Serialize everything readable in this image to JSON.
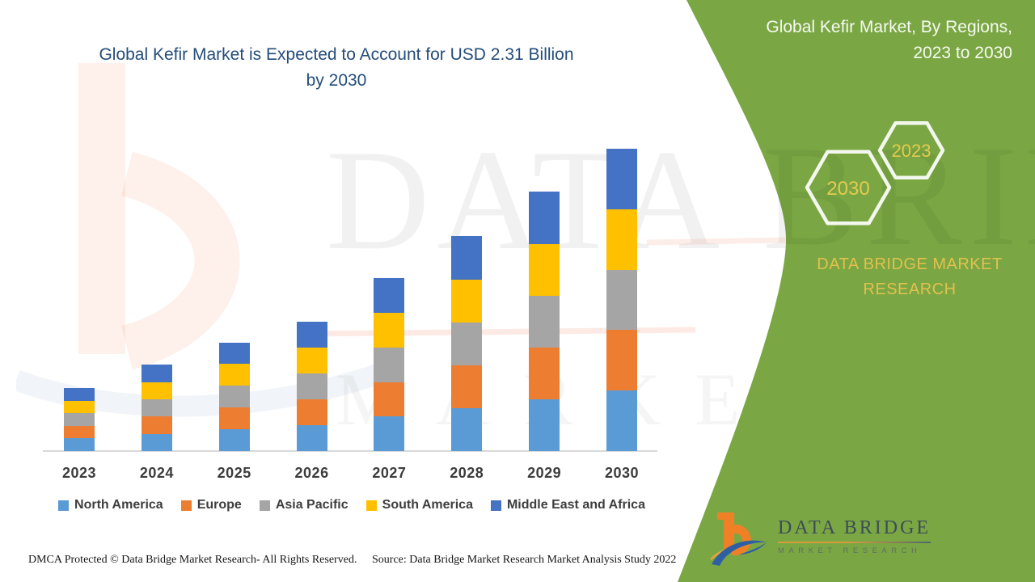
{
  "title": {
    "line1": "Global Kefir Market is Expected to Account for USD 2.31 Billion",
    "line2": "by 2030"
  },
  "panel": {
    "heading_line1": "Global Kefir Market, By Regions,",
    "heading_line2": "2023 to 2030",
    "hex_badge_small": "2023",
    "hex_badge_large": "2030",
    "brand_line1": "DATA BRIDGE MARKET",
    "brand_line2": "RESEARCH",
    "green_color": "#7aa743",
    "accent_yellow": "#e5cb4f"
  },
  "logo": {
    "name_text": "DATA BRIDGE",
    "sub_text": "MARKET RESEARCH",
    "orange": "#f08026",
    "blue": "#2e5fa3"
  },
  "watermark": {
    "row1": "DATA BRIDGE",
    "row2": "MARKET RESEARCH"
  },
  "footer": {
    "left": "DMCA Protected © Data Bridge Market Research- All Rights Reserved.",
    "right": "Source: Data Bridge Market Research Market Analysis Study 2022"
  },
  "chart_data": {
    "type": "bar",
    "stacked": true,
    "title": "Global Kefir Market is Expected to Account for USD 2.31 Billion by 2030",
    "unit": "USD Billion",
    "categories": [
      "2023",
      "2024",
      "2025",
      "2026",
      "2027",
      "2028",
      "2029",
      "2030"
    ],
    "series": [
      {
        "name": "North America",
        "color": "#5B9BD5",
        "values": [
          0.096,
          0.132,
          0.166,
          0.198,
          0.264,
          0.328,
          0.396,
          0.462
        ]
      },
      {
        "name": "Europe",
        "color": "#ED7D31",
        "values": [
          0.096,
          0.132,
          0.166,
          0.198,
          0.264,
          0.328,
          0.396,
          0.462
        ]
      },
      {
        "name": "Asia Pacific",
        "color": "#A5A5A5",
        "values": [
          0.096,
          0.132,
          0.166,
          0.198,
          0.264,
          0.328,
          0.396,
          0.462
        ]
      },
      {
        "name": "South America",
        "color": "#FFC000",
        "values": [
          0.096,
          0.132,
          0.166,
          0.198,
          0.264,
          0.328,
          0.396,
          0.462
        ]
      },
      {
        "name": "Middle East and Africa",
        "color": "#4472C4",
        "values": [
          0.096,
          0.132,
          0.166,
          0.198,
          0.264,
          0.328,
          0.396,
          0.462
        ]
      }
    ],
    "totals": [
      0.48,
      0.66,
      0.83,
      0.99,
      1.32,
      1.64,
      1.98,
      2.31
    ],
    "xlabel": "",
    "ylabel": "",
    "ylim": [
      0,
      2.31
    ],
    "gridlines": false,
    "y_axis_visible": false,
    "legend_position": "bottom"
  }
}
